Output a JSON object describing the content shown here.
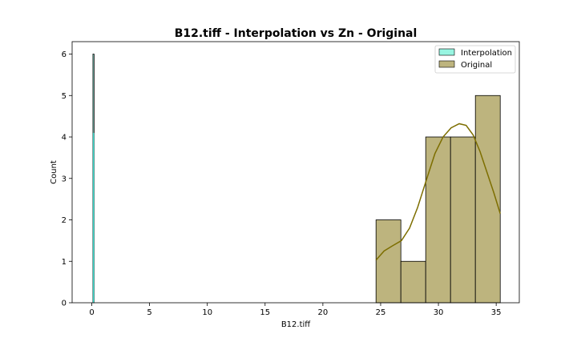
{
  "chart_data": {
    "type": "bar",
    "title": "B12.tiff - Interpolation vs Zn - Original",
    "xlabel": "B12.tiff",
    "ylabel": "Count",
    "xlim": [
      -1.7,
      37.0
    ],
    "ylim": [
      0,
      6.3
    ],
    "xticks": [
      0,
      5,
      10,
      15,
      20,
      25,
      30,
      35
    ],
    "yticks": [
      0,
      1,
      2,
      3,
      4,
      5,
      6
    ],
    "grid": false,
    "legend_position": "top-right",
    "series": [
      {
        "name": "Interpolation",
        "color": "#98f5e1",
        "kde_color": "#40e0d0",
        "bins": [
          {
            "x0": 0.1,
            "x1": 0.2,
            "count": 6
          }
        ],
        "kde": [
          [
            0.15,
            0.0
          ],
          [
            0.15,
            1.1
          ],
          [
            0.15,
            1.75
          ],
          [
            0.15,
            4.1
          ]
        ]
      },
      {
        "name": "Original",
        "color": "#bdb47e",
        "kde_color": "#7d6e00",
        "bins": [
          {
            "x0": 24.6,
            "x1": 26.75,
            "count": 2
          },
          {
            "x0": 26.75,
            "x1": 28.9,
            "count": 1
          },
          {
            "x0": 28.9,
            "x1": 31.05,
            "count": 4
          },
          {
            "x0": 31.05,
            "x1": 33.2,
            "count": 4
          },
          {
            "x0": 33.2,
            "x1": 35.35,
            "count": 5
          }
        ],
        "kde": [
          [
            24.6,
            1.03
          ],
          [
            25.3,
            1.25
          ],
          [
            26.0,
            1.37
          ],
          [
            26.8,
            1.5
          ],
          [
            27.5,
            1.8
          ],
          [
            28.2,
            2.3
          ],
          [
            29.0,
            3.0
          ],
          [
            29.7,
            3.6
          ],
          [
            30.4,
            4.0
          ],
          [
            31.1,
            4.22
          ],
          [
            31.8,
            4.32
          ],
          [
            32.4,
            4.28
          ],
          [
            33.0,
            4.05
          ],
          [
            33.6,
            3.65
          ],
          [
            34.2,
            3.15
          ],
          [
            34.8,
            2.65
          ],
          [
            35.35,
            2.15
          ]
        ]
      }
    ]
  }
}
